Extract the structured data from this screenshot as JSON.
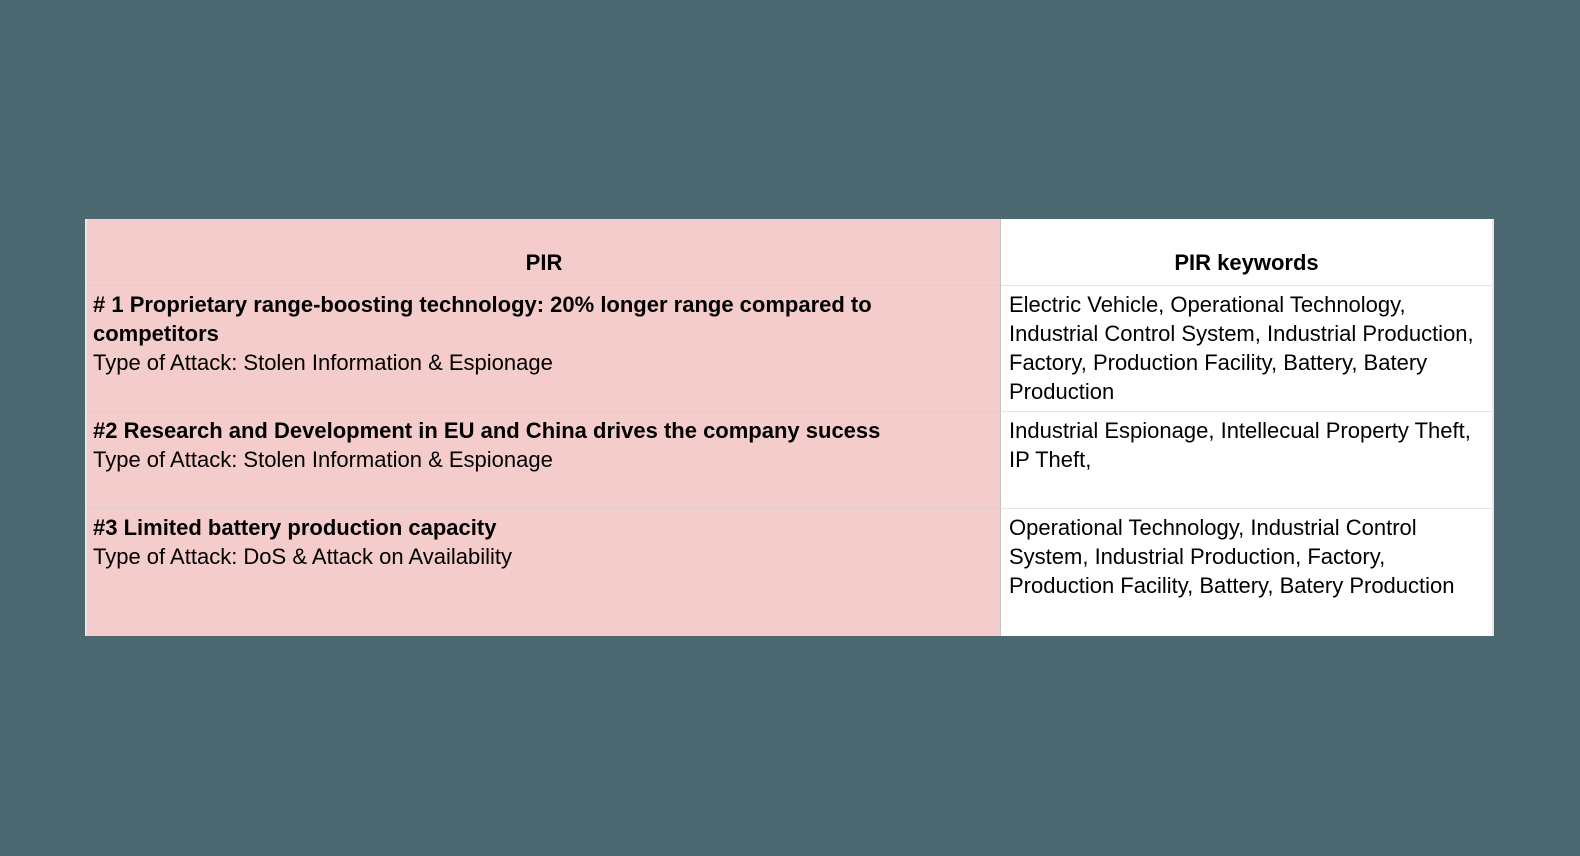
{
  "page": {
    "background_color": "#4C6870"
  },
  "table": {
    "header": {
      "pir": "PIR",
      "keywords": "PIR keywords"
    },
    "rows": [
      {
        "title": "# 1 Proprietary range-boosting technology: 20% longer range compared to competitors",
        "attack": "Type of Attack: Stolen Information & Espionage",
        "keywords": "Electric Vehicle, Operational Technology, Industrial Control System, Industrial Production, Factory, Production Facility, Battery, Batery Production"
      },
      {
        "title": "#2 Research and Development in EU and China drives the company sucess",
        "attack": "Type of Attack: Stolen Information & Espionage",
        "keywords": "Industrial Espionage, Intellecual Property Theft, IP Theft,"
      },
      {
        "title": "#3 Limited battery production capacity",
        "attack": "Type of Attack: DoS & Attack on Availability",
        "keywords": "Operational Technology, Industrial Control System, Industrial Production, Factory, Production Facility, Battery, Batery Production"
      }
    ],
    "colors": {
      "pir_column_bg": "#F4CCCC",
      "keywords_column_bg": "#FFFFFF",
      "cell_border": "#C9C0C0",
      "outer_border": "#EDE4E4",
      "text": "#000000"
    }
  }
}
